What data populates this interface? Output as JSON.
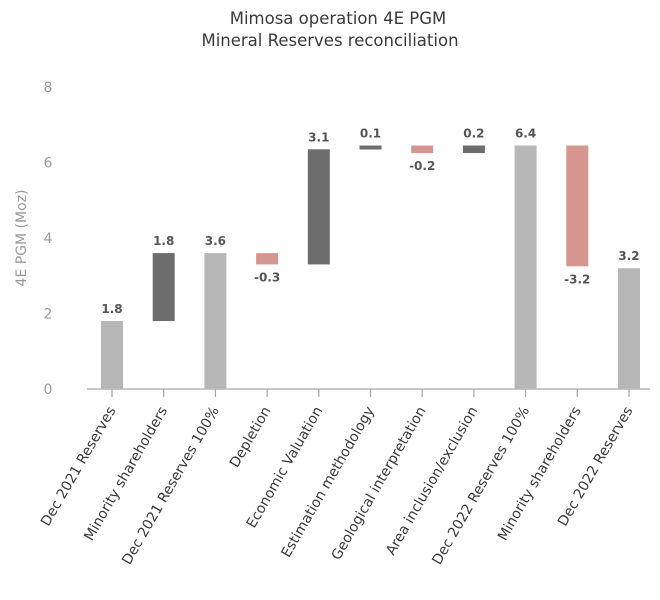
{
  "chart_data": {
    "type": "bar",
    "subtype": "waterfall",
    "title_lines": [
      "Mimosa operation 4E PGM",
      "Mineral Reserves reconciliation"
    ],
    "ylabel": "4E PGM (Moz)",
    "xlabel": "",
    "ylim": [
      0,
      8
    ],
    "yticks": [
      0,
      2,
      4,
      6,
      8
    ],
    "grid": false,
    "colors": {
      "total": "#b7b7b7",
      "increase": "#6d6d6d",
      "decrease": "#d69690",
      "label": "#555555"
    },
    "bars": [
      {
        "category": "Dec 2021 Reserves",
        "kind": "total",
        "start": 0,
        "end": 1.8,
        "label": "1.8"
      },
      {
        "category": "Minority shareholders",
        "kind": "increase",
        "start": 1.8,
        "end": 3.6,
        "label": "1.8"
      },
      {
        "category": "Dec 2021 Reserves 100%",
        "kind": "total",
        "start": 0,
        "end": 3.6,
        "label": "3.6"
      },
      {
        "category": "Depletion",
        "kind": "decrease",
        "start": 3.6,
        "end": 3.3,
        "label": "-0.3"
      },
      {
        "category": "Economic Valuation",
        "kind": "increase",
        "start": 3.3,
        "end": 6.35,
        "label": "3.1"
      },
      {
        "category": "Estimation methodology",
        "kind": "increase",
        "start": 6.35,
        "end": 6.45,
        "label": "0.1"
      },
      {
        "category": "Geological interpretation",
        "kind": "decrease",
        "start": 6.45,
        "end": 6.25,
        "label": "-0.2"
      },
      {
        "category": "Area inclusion/exclusion",
        "kind": "increase",
        "start": 6.25,
        "end": 6.45,
        "label": "0.2"
      },
      {
        "category": "Dec 2022 Reserves 100%",
        "kind": "total",
        "start": 0,
        "end": 6.45,
        "label": "6.4"
      },
      {
        "category": "Minority shareholders",
        "kind": "decrease",
        "start": 6.45,
        "end": 3.25,
        "label": "-3.2"
      },
      {
        "category": "Dec 2022 Reserves",
        "kind": "total",
        "start": 0,
        "end": 3.2,
        "label": "3.2"
      }
    ]
  }
}
